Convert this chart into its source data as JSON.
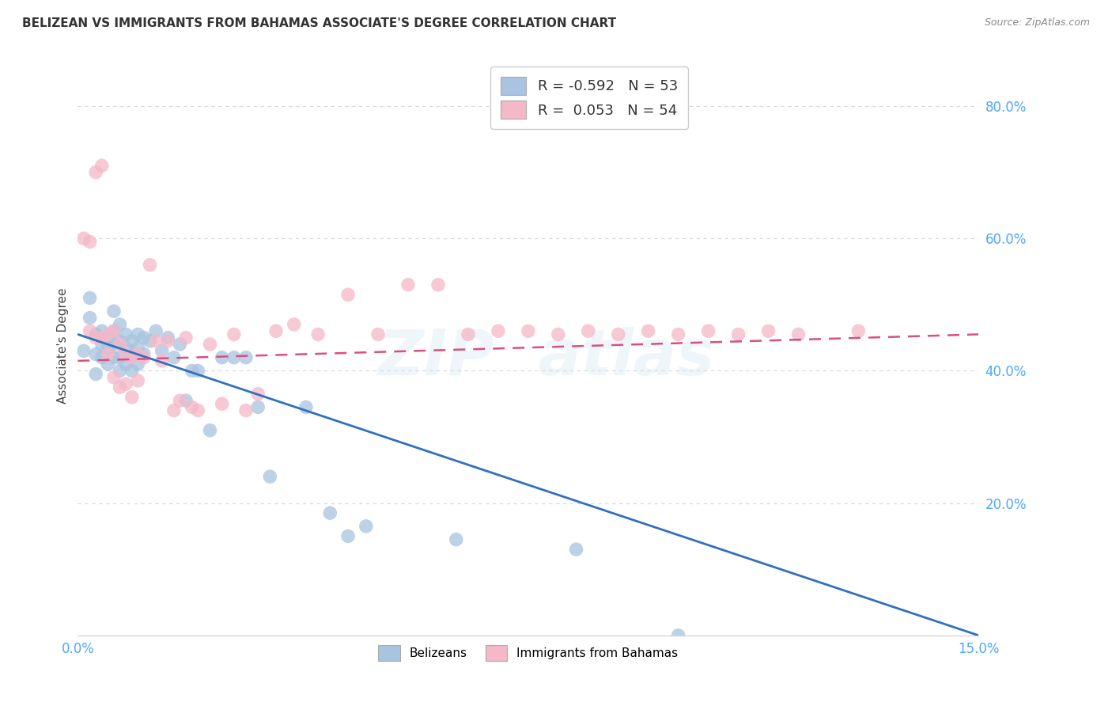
{
  "title": "BELIZEAN VS IMMIGRANTS FROM BAHAMAS ASSOCIATE'S DEGREE CORRELATION CHART",
  "source": "Source: ZipAtlas.com",
  "ylabel": "Associate's Degree",
  "x_min": 0.0,
  "x_max": 0.15,
  "y_min": 0.0,
  "y_max": 0.875,
  "x_ticks": [
    0.0,
    0.03,
    0.06,
    0.09,
    0.12,
    0.15
  ],
  "y_ticks": [
    0.0,
    0.2,
    0.4,
    0.6,
    0.8
  ],
  "legend_blue_r": "-0.592",
  "legend_blue_n": "53",
  "legend_pink_r": "0.053",
  "legend_pink_n": "54",
  "blue_color": "#a8c4e0",
  "pink_color": "#f4b8c8",
  "blue_line_color": "#3070c0",
  "pink_line_color": "#d85080",
  "blue_scatter_x": [
    0.001,
    0.002,
    0.002,
    0.003,
    0.003,
    0.003,
    0.004,
    0.004,
    0.004,
    0.005,
    0.005,
    0.005,
    0.006,
    0.006,
    0.006,
    0.006,
    0.007,
    0.007,
    0.007,
    0.007,
    0.008,
    0.008,
    0.008,
    0.009,
    0.009,
    0.009,
    0.01,
    0.01,
    0.01,
    0.011,
    0.011,
    0.012,
    0.013,
    0.014,
    0.015,
    0.016,
    0.017,
    0.018,
    0.019,
    0.02,
    0.022,
    0.024,
    0.026,
    0.028,
    0.03,
    0.032,
    0.038,
    0.042,
    0.045,
    0.048,
    0.063,
    0.083,
    0.1
  ],
  "blue_scatter_y": [
    0.43,
    0.48,
    0.51,
    0.455,
    0.425,
    0.395,
    0.46,
    0.44,
    0.42,
    0.45,
    0.435,
    0.41,
    0.49,
    0.46,
    0.44,
    0.42,
    0.47,
    0.445,
    0.42,
    0.4,
    0.455,
    0.435,
    0.41,
    0.445,
    0.425,
    0.4,
    0.455,
    0.435,
    0.41,
    0.45,
    0.425,
    0.445,
    0.46,
    0.43,
    0.45,
    0.42,
    0.44,
    0.355,
    0.4,
    0.4,
    0.31,
    0.42,
    0.42,
    0.42,
    0.345,
    0.24,
    0.345,
    0.185,
    0.15,
    0.165,
    0.145,
    0.13,
    0.0
  ],
  "pink_scatter_x": [
    0.001,
    0.002,
    0.002,
    0.003,
    0.003,
    0.004,
    0.004,
    0.005,
    0.005,
    0.006,
    0.006,
    0.007,
    0.007,
    0.008,
    0.008,
    0.009,
    0.009,
    0.01,
    0.01,
    0.011,
    0.012,
    0.013,
    0.014,
    0.015,
    0.016,
    0.017,
    0.018,
    0.019,
    0.02,
    0.022,
    0.024,
    0.026,
    0.028,
    0.03,
    0.033,
    0.036,
    0.04,
    0.045,
    0.05,
    0.055,
    0.06,
    0.065,
    0.07,
    0.075,
    0.08,
    0.085,
    0.09,
    0.095,
    0.1,
    0.105,
    0.11,
    0.115,
    0.12,
    0.13
  ],
  "pink_scatter_y": [
    0.6,
    0.595,
    0.46,
    0.45,
    0.7,
    0.45,
    0.71,
    0.455,
    0.425,
    0.46,
    0.39,
    0.44,
    0.375,
    0.425,
    0.38,
    0.42,
    0.36,
    0.425,
    0.385,
    0.42,
    0.56,
    0.445,
    0.415,
    0.445,
    0.34,
    0.355,
    0.45,
    0.345,
    0.34,
    0.44,
    0.35,
    0.455,
    0.34,
    0.365,
    0.46,
    0.47,
    0.455,
    0.515,
    0.455,
    0.53,
    0.53,
    0.455,
    0.46,
    0.46,
    0.455,
    0.46,
    0.455,
    0.46,
    0.455,
    0.46,
    0.455,
    0.46,
    0.455,
    0.46
  ],
  "blue_line_x": [
    0.0,
    0.15
  ],
  "blue_line_y": [
    0.455,
    0.0
  ],
  "pink_line_x": [
    0.0,
    0.15
  ],
  "pink_line_y": [
    0.415,
    0.455
  ],
  "background_color": "#ffffff",
  "grid_color": "#cccccc",
  "title_color": "#333333",
  "tick_label_color": "#4da6ff",
  "ylabel_color": "#444444"
}
